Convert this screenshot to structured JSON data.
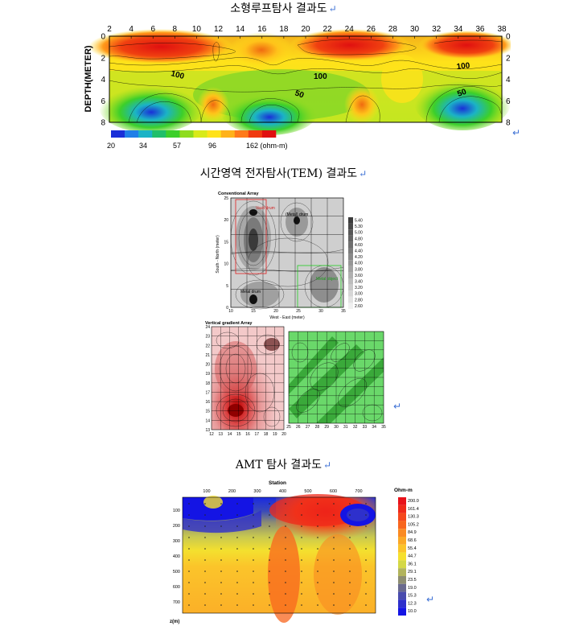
{
  "captions": {
    "loop": "소형루프탐사 결과도",
    "tem": "시간영역 전자탐사(TEM) 결과도",
    "amt": "AMT 탐사 결과도",
    "return_mark": "↵"
  },
  "loop_figure": {
    "ylabel": "DEPTH(METER)",
    "x_ticks": [
      "2",
      "4",
      "6",
      "8",
      "10",
      "12",
      "14",
      "16",
      "18",
      "20",
      "22",
      "24",
      "26",
      "28",
      "30",
      "32",
      "34",
      "36",
      "38"
    ],
    "y_ticks": [
      "0",
      "2",
      "4",
      "6",
      "8"
    ],
    "contour_labels": [
      "100",
      "100",
      "100",
      "50",
      "50"
    ],
    "colorbar_ticks": [
      "20",
      "34",
      "57",
      "96",
      "162 (ohm-m)"
    ],
    "colorbar_colors": [
      "#1a2fd8",
      "#1f7fe8",
      "#1bb3c6",
      "#1fbf6a",
      "#3ccf2a",
      "#8fdc1e",
      "#d8ea1a",
      "#ffe21a",
      "#ffb21a",
      "#ff7a1a",
      "#f03a10",
      "#e01010"
    ]
  },
  "tem_figure": {
    "conventional_title": "Conventional Array",
    "conventional_ylabel": "South - North (meter)",
    "conventional_xlabel": "West - East (meter)",
    "conventional_x_ticks": [
      "10",
      "15",
      "20",
      "25",
      "30",
      "35"
    ],
    "conventional_y_ticks": [
      "0",
      "5",
      "10",
      "15",
      "20",
      "25"
    ],
    "annotations": [
      "Vault drum",
      "(Metal) drum",
      "Metal drum",
      "Metal object"
    ],
    "legend_values": [
      "5.40",
      "5.30",
      "5.00",
      "4.80",
      "4.60",
      "4.40",
      "4.20",
      "4.00",
      "3.80",
      "3.60",
      "3.40",
      "3.20",
      "3.00",
      "2.80",
      "2.60"
    ],
    "vertical_title": "Vertical gradient Array",
    "red_x_ticks": [
      "12",
      "13",
      "14",
      "15",
      "16",
      "17",
      "18",
      "19",
      "20"
    ],
    "red_y_ticks": [
      "24",
      "23",
      "22",
      "21",
      "20",
      "19",
      "18",
      "17",
      "16",
      "15",
      "14",
      "13"
    ],
    "green_x_ticks": [
      "25",
      "26",
      "27",
      "28",
      "29",
      "30",
      "31",
      "32",
      "33",
      "34",
      "35"
    ]
  },
  "amt_figure": {
    "station_label": "Station",
    "station_ticks": [
      "100",
      "200",
      "300",
      "400",
      "500",
      "600",
      "700"
    ],
    "depth_ticks": [
      "100",
      "200",
      "300",
      "400",
      "500",
      "600",
      "700"
    ],
    "z_label": "z(m)",
    "legend_title": "Ohm-m",
    "legend_values": [
      "200.0",
      "161.4",
      "130.3",
      "105.2",
      "84.9",
      "68.6",
      "55.4",
      "44.7",
      "36.1",
      "29.1",
      "23.5",
      "19.0",
      "15.3",
      "12.3",
      "10.0"
    ],
    "legend_colors": [
      "#e8121a",
      "#ef2a1a",
      "#f5481c",
      "#f8661e",
      "#fa8a22",
      "#fba826",
      "#fbc42a",
      "#f6e02e",
      "#d4d846",
      "#b2b45c",
      "#8e8e72",
      "#6a6a8e",
      "#4a4cae",
      "#2e30cc",
      "#1414e4"
    ]
  }
}
